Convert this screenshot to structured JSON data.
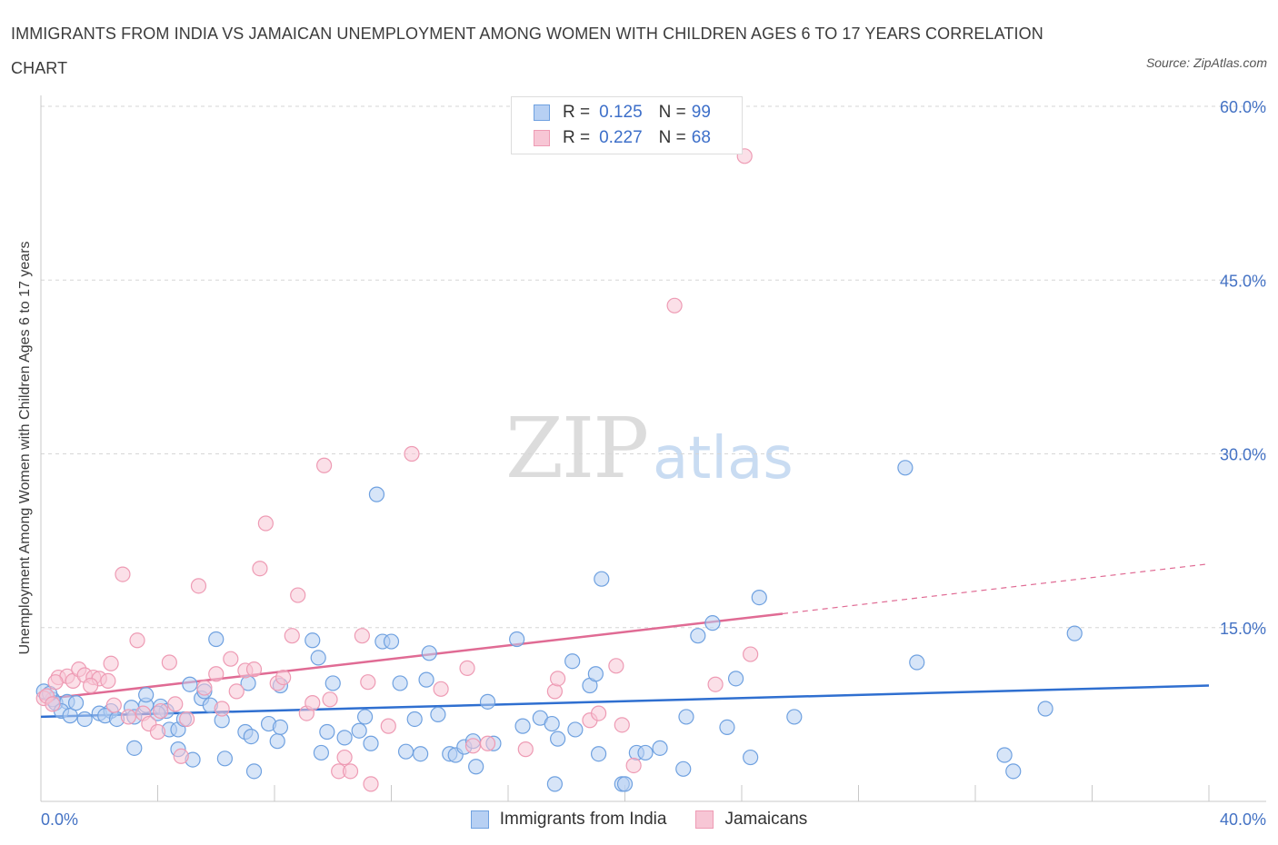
{
  "header": {
    "title": "IMMIGRANTS FROM INDIA VS JAMAICAN UNEMPLOYMENT AMONG WOMEN WITH CHILDREN AGES 6 TO 17 YEARS CORRELATION CHART",
    "source": "Source: ZipAtlas.com"
  },
  "watermark": {
    "zip": "ZIP",
    "atlas": "atlas"
  },
  "legend": {
    "r_label": "R =",
    "n_label": "N =",
    "india": {
      "r": "0.125",
      "n": "99"
    },
    "jamaica": {
      "r": "0.227",
      "n": "68"
    }
  },
  "chart_data": {
    "type": "scatter",
    "title": "IMMIGRANTS FROM INDIA VS JAMAICAN UNEMPLOYMENT AMONG WOMEN WITH CHILDREN AGES 6 TO 17 YEARS CORRELATION CHART",
    "xlabel": "",
    "ylabel": "Unemployment Among Women with Children Ages 6 to 17 years",
    "xlim": [
      0,
      40
    ],
    "ylim": [
      0,
      60
    ],
    "x_tick_labels": [
      "0.0%",
      "40.0%"
    ],
    "y_ticks": [
      15,
      30,
      45,
      60
    ],
    "y_tick_labels": [
      "15.0%",
      "30.0%",
      "45.0%",
      "60.0%"
    ],
    "grid": "horizontal dashed",
    "legend_position": "top-center",
    "series": [
      {
        "name": "Immigrants from India",
        "color": "#6fa1e0",
        "fill": "#b7d0f3",
        "line_color": "#2f6fd0",
        "trend": {
          "x": [
            0,
            40
          ],
          "y": [
            7.3,
            10.0
          ]
        },
        "points": [
          [
            0.1,
            9.5
          ],
          [
            0.4,
            8.8
          ],
          [
            0.5,
            8.5
          ],
          [
            0.9,
            8.6
          ],
          [
            0.7,
            7.8
          ],
          [
            1.0,
            7.4
          ],
          [
            1.2,
            8.5
          ],
          [
            1.5,
            7.1
          ],
          [
            2.0,
            7.6
          ],
          [
            2.4,
            7.8
          ],
          [
            2.2,
            7.4
          ],
          [
            2.6,
            7.1
          ],
          [
            3.1,
            8.1
          ],
          [
            3.2,
            7.3
          ],
          [
            3.6,
            8.3
          ],
          [
            3.6,
            9.2
          ],
          [
            4.1,
            8.2
          ],
          [
            4.3,
            7.8
          ],
          [
            4.0,
            7.6
          ],
          [
            3.2,
            4.6
          ],
          [
            4.4,
            6.2
          ],
          [
            4.7,
            6.2
          ],
          [
            4.9,
            7.1
          ],
          [
            4.7,
            4.5
          ],
          [
            5.2,
            3.6
          ],
          [
            5.1,
            10.1
          ],
          [
            5.5,
            8.9
          ],
          [
            5.8,
            8.3
          ],
          [
            5.6,
            9.5
          ],
          [
            6.2,
            7.0
          ],
          [
            6.3,
            3.7
          ],
          [
            6.0,
            14.0
          ],
          [
            7.0,
            6.0
          ],
          [
            7.2,
            5.6
          ],
          [
            7.3,
            2.6
          ],
          [
            7.1,
            10.2
          ],
          [
            7.8,
            6.7
          ],
          [
            8.2,
            10.0
          ],
          [
            8.1,
            5.2
          ],
          [
            8.2,
            6.4
          ],
          [
            9.3,
            13.9
          ],
          [
            9.5,
            12.4
          ],
          [
            9.6,
            4.2
          ],
          [
            10.0,
            10.2
          ],
          [
            9.8,
            6.0
          ],
          [
            10.4,
            5.5
          ],
          [
            10.9,
            6.1
          ],
          [
            11.1,
            7.3
          ],
          [
            11.3,
            5.0
          ],
          [
            11.5,
            26.5
          ],
          [
            11.7,
            13.8
          ],
          [
            12.0,
            13.8
          ],
          [
            12.3,
            10.2
          ],
          [
            12.5,
            4.3
          ],
          [
            12.8,
            7.1
          ],
          [
            13.0,
            4.1
          ],
          [
            13.2,
            10.5
          ],
          [
            13.3,
            12.8
          ],
          [
            13.6,
            7.5
          ],
          [
            14.0,
            4.1
          ],
          [
            14.2,
            4.0
          ],
          [
            14.5,
            4.7
          ],
          [
            14.8,
            5.2
          ],
          [
            14.9,
            3.0
          ],
          [
            15.5,
            5.0
          ],
          [
            15.3,
            8.6
          ],
          [
            16.3,
            14.0
          ],
          [
            16.5,
            6.5
          ],
          [
            17.1,
            7.2
          ],
          [
            17.5,
            6.7
          ],
          [
            17.6,
            1.5
          ],
          [
            17.7,
            5.4
          ],
          [
            18.2,
            12.1
          ],
          [
            18.3,
            6.2
          ],
          [
            18.8,
            10.0
          ],
          [
            19.0,
            11.0
          ],
          [
            19.2,
            19.2
          ],
          [
            19.1,
            4.1
          ],
          [
            19.9,
            1.5
          ],
          [
            20.4,
            4.2
          ],
          [
            20.0,
            1.5
          ],
          [
            20.7,
            4.2
          ],
          [
            21.2,
            4.6
          ],
          [
            22.0,
            2.8
          ],
          [
            22.1,
            7.3
          ],
          [
            22.5,
            14.3
          ],
          [
            23.0,
            15.4
          ],
          [
            23.5,
            6.4
          ],
          [
            23.8,
            10.6
          ],
          [
            24.3,
            3.8
          ],
          [
            24.6,
            17.6
          ],
          [
            25.8,
            7.3
          ],
          [
            29.6,
            28.8
          ],
          [
            30.0,
            12.0
          ],
          [
            33.0,
            4.0
          ],
          [
            33.3,
            2.6
          ],
          [
            34.4,
            8.0
          ],
          [
            35.4,
            14.5
          ],
          [
            0.3,
            9.3
          ]
        ]
      },
      {
        "name": "Jamaicans",
        "color": "#ee9bb4",
        "fill": "#f7c6d5",
        "line_color": "#e06b94",
        "trend": {
          "x": [
            0,
            25.4
          ],
          "y": [
            8.8,
            16.2
          ]
        },
        "trend_extension": {
          "x": [
            25.4,
            40
          ],
          "y": [
            16.2,
            20.5
          ]
        },
        "points": [
          [
            0.1,
            8.9
          ],
          [
            0.2,
            9.1
          ],
          [
            0.4,
            8.4
          ],
          [
            0.6,
            10.7
          ],
          [
            0.9,
            10.8
          ],
          [
            1.1,
            10.4
          ],
          [
            1.3,
            11.4
          ],
          [
            1.5,
            10.9
          ],
          [
            1.8,
            10.7
          ],
          [
            2.0,
            10.6
          ],
          [
            2.3,
            10.4
          ],
          [
            2.4,
            11.9
          ],
          [
            2.5,
            8.3
          ],
          [
            2.8,
            19.6
          ],
          [
            3.0,
            7.3
          ],
          [
            3.3,
            13.9
          ],
          [
            3.5,
            7.6
          ],
          [
            3.7,
            6.7
          ],
          [
            4.1,
            7.8
          ],
          [
            4.0,
            6.0
          ],
          [
            4.4,
            12.0
          ],
          [
            4.6,
            8.4
          ],
          [
            4.8,
            3.9
          ],
          [
            5.0,
            7.1
          ],
          [
            5.4,
            18.6
          ],
          [
            5.6,
            9.8
          ],
          [
            6.0,
            11.0
          ],
          [
            6.2,
            8.0
          ],
          [
            6.5,
            12.3
          ],
          [
            6.7,
            9.5
          ],
          [
            7.0,
            11.3
          ],
          [
            7.3,
            11.4
          ],
          [
            7.7,
            24.0
          ],
          [
            7.5,
            20.1
          ],
          [
            8.1,
            10.2
          ],
          [
            8.3,
            10.7
          ],
          [
            8.6,
            14.3
          ],
          [
            8.8,
            17.8
          ],
          [
            9.1,
            7.6
          ],
          [
            9.3,
            8.5
          ],
          [
            9.7,
            29.0
          ],
          [
            9.9,
            8.8
          ],
          [
            10.2,
            2.6
          ],
          [
            10.4,
            3.8
          ],
          [
            10.6,
            2.6
          ],
          [
            11.0,
            14.3
          ],
          [
            11.2,
            10.3
          ],
          [
            11.3,
            1.5
          ],
          [
            11.9,
            6.5
          ],
          [
            12.7,
            30.0
          ],
          [
            13.7,
            9.7
          ],
          [
            14.6,
            11.5
          ],
          [
            14.8,
            4.8
          ],
          [
            15.3,
            5.0
          ],
          [
            16.6,
            4.5
          ],
          [
            17.6,
            9.5
          ],
          [
            17.7,
            10.6
          ],
          [
            18.8,
            7.0
          ],
          [
            19.1,
            7.6
          ],
          [
            19.7,
            11.7
          ],
          [
            19.9,
            6.6
          ],
          [
            20.3,
            3.1
          ],
          [
            21.7,
            42.8
          ],
          [
            23.1,
            10.1
          ],
          [
            24.3,
            12.7
          ],
          [
            24.1,
            55.7
          ],
          [
            0.5,
            10.3
          ],
          [
            1.7,
            10.0
          ]
        ]
      }
    ]
  }
}
